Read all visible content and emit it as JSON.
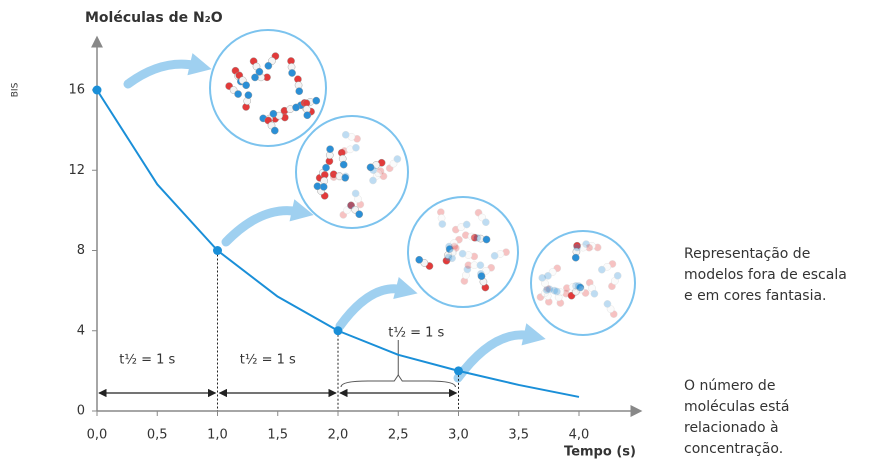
{
  "chart_data": {
    "type": "line",
    "y_axis_label": "Moléculas de N₂O",
    "x_axis_label": "Tempo (s)",
    "side_label": "BIS",
    "x": [
      0,
      0.5,
      1,
      1.5,
      2,
      2.5,
      3,
      3.5,
      4
    ],
    "values": [
      16,
      11.3,
      8,
      5.7,
      4,
      2.8,
      2,
      1.3,
      0.7
    ],
    "color": "#1a8fd8",
    "points": {
      "x": [
        0,
        1,
        2,
        3
      ],
      "values": [
        16,
        8,
        4,
        2
      ]
    },
    "xlim": [
      0,
      4
    ],
    "ylim": [
      0,
      16
    ],
    "xticks": [
      {
        "value": 0,
        "label": "0,0"
      },
      {
        "value": 0.5,
        "label": "0,5"
      },
      {
        "value": 1,
        "label": "1,0"
      },
      {
        "value": 1.5,
        "label": "1,5"
      },
      {
        "value": 2,
        "label": "2,0"
      },
      {
        "value": 2.5,
        "label": "2,5"
      },
      {
        "value": 3,
        "label": "3,0"
      },
      {
        "value": 3.5,
        "label": "3,5"
      },
      {
        "value": 4,
        "label": "4,0"
      }
    ],
    "yticks": [
      0,
      4,
      8,
      12,
      16
    ],
    "annotations": [
      "t½ = 1 s",
      "t½ = 1 s",
      "t½ = 1 s"
    ],
    "note_1": [
      "Representação de",
      "modelos fora de escala",
      "e em cores fantasia."
    ],
    "note_2": [
      "O número de",
      "moléculas está",
      "relacionado à",
      "concentração."
    ]
  }
}
